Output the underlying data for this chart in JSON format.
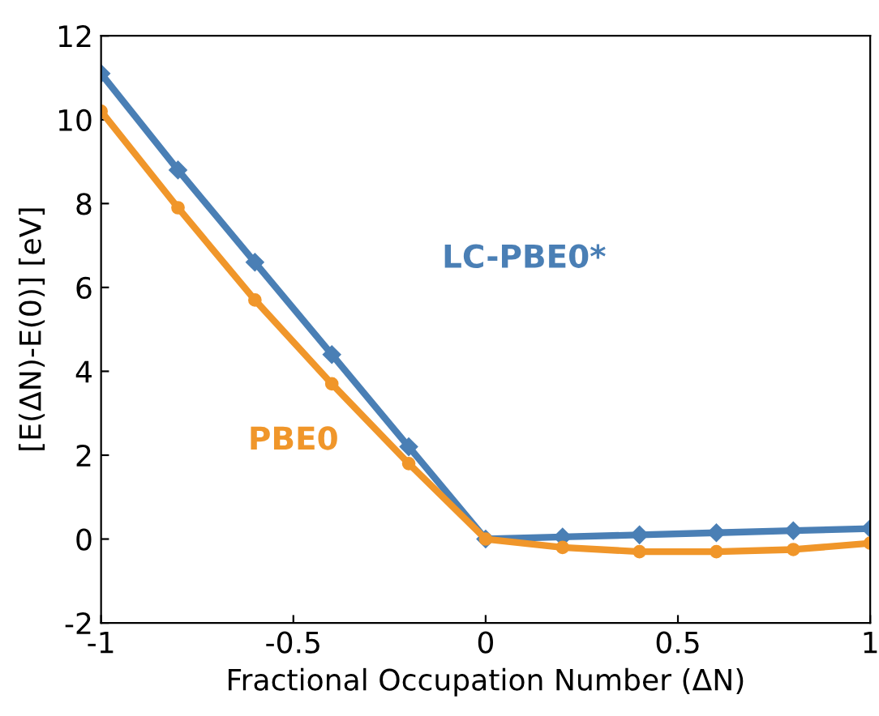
{
  "chart_data": {
    "type": "line",
    "xlabel": "Fractional Occupation Number (ΔN)",
    "ylabel": "[E(ΔN)-E(0)] [eV]",
    "x": [
      -1,
      -0.8,
      -0.6,
      -0.4,
      -0.2,
      0,
      0.2,
      0.4,
      0.6,
      0.8,
      1
    ],
    "series": [
      {
        "name": "LC-PBE0*",
        "color": "#4a7fb5",
        "marker": "diamond",
        "values": [
          11.1,
          8.8,
          6.6,
          4.4,
          2.2,
          0,
          0.05,
          0.1,
          0.15,
          0.2,
          0.25
        ]
      },
      {
        "name": "PBE0",
        "color": "#f0962a",
        "marker": "circle",
        "values": [
          10.2,
          7.9,
          5.7,
          3.7,
          1.8,
          0,
          -0.2,
          -0.3,
          -0.3,
          -0.25,
          -0.1
        ]
      }
    ],
    "xlim": [
      -1,
      1
    ],
    "xticks": [
      -1,
      -0.5,
      0,
      0.5,
      1
    ],
    "ylim": [
      -2,
      12
    ],
    "yticks": [
      -2,
      0,
      2,
      4,
      6,
      8,
      10,
      12
    ],
    "grid": false,
    "legend": false,
    "line_style": "solid"
  }
}
